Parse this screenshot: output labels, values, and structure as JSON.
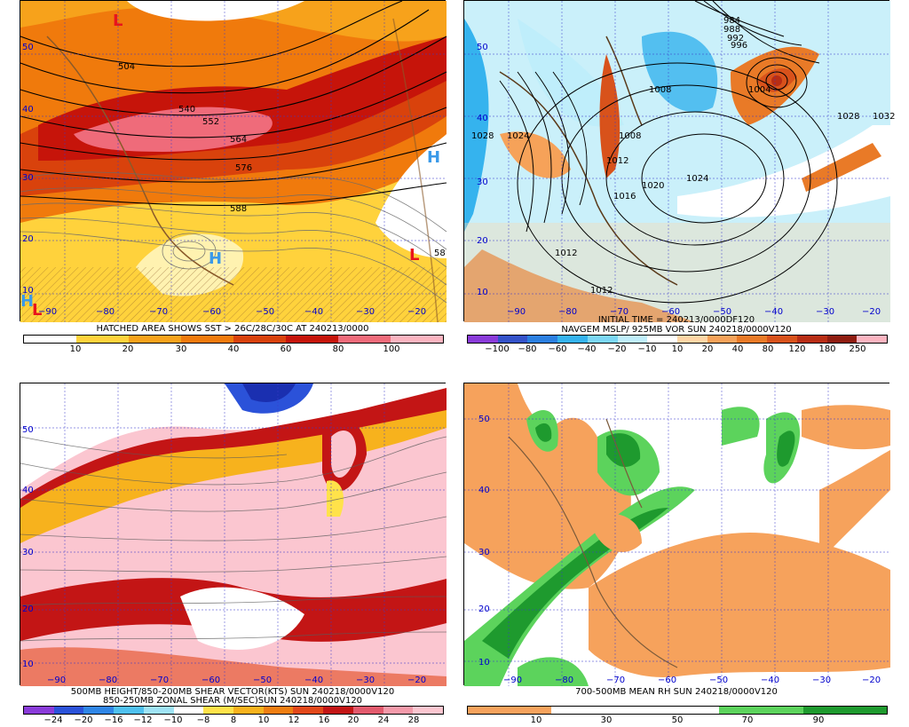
{
  "panels": [
    {
      "id": "p1",
      "caption": "HATCHED AREA SHOWS SST > 26C/28C/30C AT 240213/0000",
      "colorbar": {
        "colors": [
          "#ffffff",
          "#ffd23c",
          "#f7a21b",
          "#f07a0c",
          "#d9420c",
          "#c6140a",
          "#ef6b7a",
          "#fbb4c0"
        ],
        "ticks": [
          "10",
          "20",
          "30",
          "40",
          "60",
          "80",
          "100"
        ]
      },
      "contour_labels": [
        "504",
        "540",
        "552",
        "564",
        "576",
        "588",
        "58"
      ],
      "pressure_centers": [
        {
          "letter": "L",
          "color": "#e8141c"
        },
        {
          "letter": "H",
          "color": "#3b9ae8"
        },
        {
          "letter": "H",
          "color": "#3b9ae8"
        },
        {
          "letter": "L",
          "color": "#e8141c"
        },
        {
          "letter": "H",
          "color": "#3b9ae8"
        },
        {
          "letter": "L",
          "color": "#e8141c"
        }
      ]
    },
    {
      "id": "p2",
      "caption_top": "INITIAL TIME = 240213/0000DF120",
      "caption": "NAVGEM MSLP/ 925MB VOR SUN 240218/0000V120",
      "colorbar": {
        "colors": [
          "#8a3bd9",
          "#3452c9",
          "#2b7fe0",
          "#35b3ee",
          "#7bd7f5",
          "#bfeefb",
          "#ffffff",
          "#ffd6a6",
          "#f6a259",
          "#e97a27",
          "#d8521b",
          "#b82d14",
          "#8f1c10",
          "#fbb4c0"
        ],
        "ticks": [
          "−100",
          "−80",
          "−60",
          "−40",
          "−20",
          "−10",
          "10",
          "20",
          "40",
          "80",
          "120",
          "180",
          "250"
        ]
      },
      "contour_labels": [
        "984",
        "988",
        "992",
        "996",
        "1004",
        "1008",
        "1028",
        "1032",
        "1028",
        "1024",
        "1020",
        "1016",
        "1012",
        "1024",
        "1012",
        "1008",
        "1012"
      ]
    },
    {
      "id": "p3",
      "caption_top": "500MB HEIGHT/850-200MB SHEAR VECTOR(KTS) SUN 240218/0000V120",
      "caption": "850-250MB ZONAL SHEAR (M/SEC)SUN 240218/0000V120",
      "colorbar": {
        "colors": [
          "#8a3bd9",
          "#2b52d9",
          "#2f86e6",
          "#4fc1ef",
          "#9fe3f5",
          "#ffffff",
          "#ffe24a",
          "#f7b21d",
          "#ef7e11",
          "#e2481a",
          "#c31515",
          "#e25a6d",
          "#f49aaa",
          "#fbc6d0"
        ],
        "ticks": [
          "−24",
          "−20",
          "−16",
          "−12",
          "−10",
          "−8",
          "8",
          "10",
          "12",
          "16",
          "20",
          "24",
          "28"
        ]
      }
    },
    {
      "id": "p4",
      "caption": "700-500MB MEAN RH SUN 240218/0000V120",
      "colorbar": {
        "colors": [
          "#f6a25c",
          "#f6a25c",
          "#ffffff",
          "#ffffff",
          "#ffffff",
          "#ffffff",
          "#5cd35c",
          "#5cd35c",
          "#1e9a2e",
          "#1e9a2e"
        ],
        "ticks": [
          "10",
          "30",
          "50",
          "70",
          "90"
        ]
      }
    }
  ],
  "axes": {
    "lats": [
      "50",
      "40",
      "30",
      "20",
      "10"
    ],
    "lons_a": [
      "−90",
      "−80",
      "−70",
      "−60",
      "−50",
      "−40",
      "−30",
      "−20"
    ],
    "lons_b": [
      "−90",
      "−80",
      "−70",
      "−60",
      "−50",
      "−40",
      "−30",
      "−20"
    ]
  }
}
